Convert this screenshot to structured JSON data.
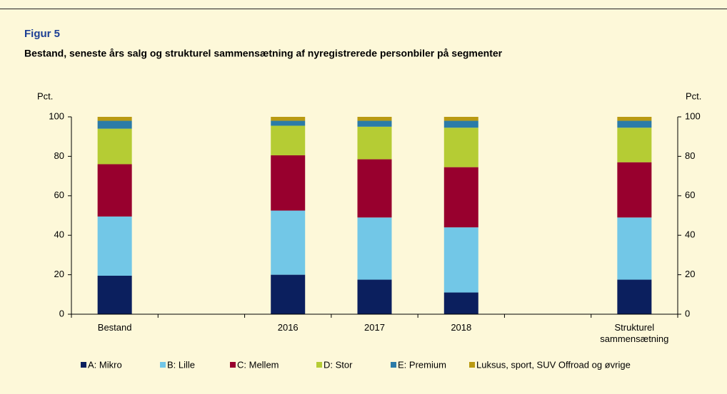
{
  "chart_data": {
    "type": "stacked_bar",
    "figure_label": "Figur 5",
    "title": "Bestand, seneste års salg og strukturel sammensætning af nyregistrerede personbiler på segmenter",
    "ylabel": "Pct.",
    "y2label": "Pct.",
    "categories": [
      "Bestand",
      null,
      "2016",
      "2017",
      "2018",
      null,
      "Strukturel sammensætning"
    ],
    "series": [
      {
        "name": "A: Mikro",
        "color": "#0b1f5e",
        "values": [
          19.5,
          null,
          20,
          17.5,
          11,
          null,
          17.5
        ]
      },
      {
        "name": "B: Lille",
        "color": "#72c7e7",
        "values": [
          30,
          null,
          32.5,
          31.5,
          33,
          null,
          31.5
        ]
      },
      {
        "name": "C: Mellem",
        "color": "#98002e",
        "values": [
          26.5,
          null,
          28,
          29.5,
          30.5,
          null,
          28
        ]
      },
      {
        "name": "D: Stor",
        "color": "#b5cc34",
        "values": [
          18,
          null,
          15,
          16.5,
          20,
          null,
          17.5
        ]
      },
      {
        "name": "E: Premium",
        "color": "#2b7ba8",
        "values": [
          4,
          null,
          2.5,
          3,
          3.5,
          null,
          3.5
        ]
      },
      {
        "name": "Luksus, sport, SUV Offroad og øvrige",
        "color": "#b99a12",
        "values": [
          2,
          null,
          2,
          2,
          2,
          null,
          2
        ]
      }
    ],
    "ylim": [
      0,
      100
    ],
    "yticks": [
      0,
      20,
      40,
      60,
      80,
      100
    ],
    "y2lim": [
      0,
      100
    ],
    "y2ticks": [
      0,
      20,
      40,
      60,
      80,
      100
    ]
  }
}
